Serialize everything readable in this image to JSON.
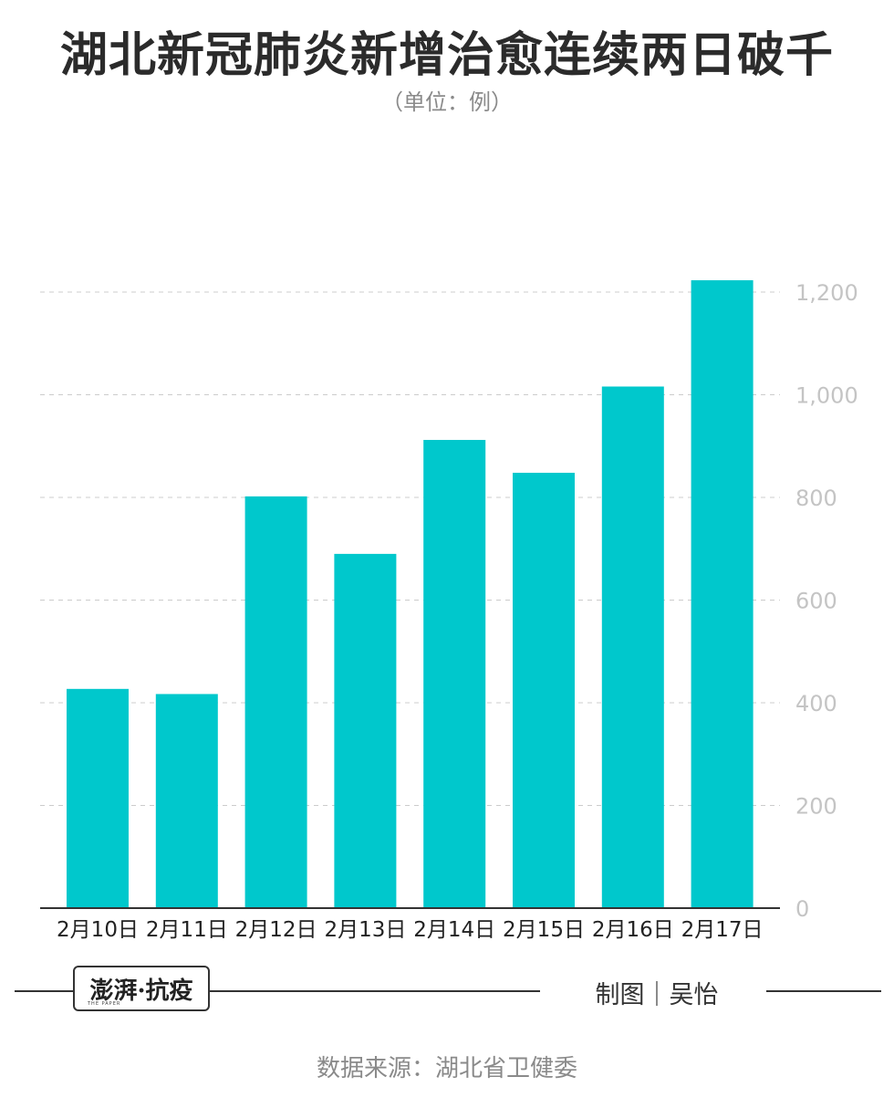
{
  "chart_data": {
    "type": "bar",
    "title": "湖北新冠肺炎新增治愈连续两日破千",
    "subtitle": "（单位：例）",
    "categories": [
      "2月10日",
      "2月11日",
      "2月12日",
      "2月13日",
      "2月14日",
      "2月15日",
      "2月16日",
      "2月17日"
    ],
    "values": [
      427,
      417,
      802,
      690,
      912,
      848,
      1016,
      1223
    ],
    "ylim": [
      0,
      1200
    ],
    "yticks": [
      0,
      200,
      400,
      600,
      800,
      1000,
      1200
    ],
    "ytick_labels": [
      "0",
      "200",
      "400",
      "600",
      "800",
      "1,000",
      "1,200"
    ],
    "y_axis_side": "right",
    "grid": true,
    "bar_color": "#00c8cc",
    "grid_color": "#cccccc",
    "tick_label_color": "#c4c4c4"
  },
  "footer": {
    "logo_text": "澎湃·抗疫",
    "logo_subtext": "THE PAPER",
    "credit": "制图｜吴怡",
    "source": "数据来源：湖北省卫健委"
  }
}
